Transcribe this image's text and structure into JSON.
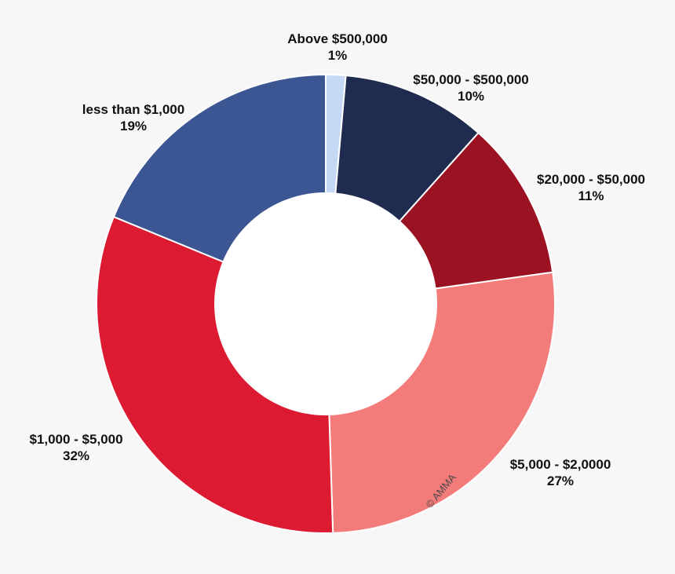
{
  "chart_data": {
    "type": "pie",
    "variant": "donut",
    "start_angle_deg": 0,
    "direction": "clockwise",
    "slices": [
      {
        "label": "Above $500,000",
        "pct": "1%",
        "value": 1.4,
        "color": "#c5d9f5",
        "label_color": "#111111"
      },
      {
        "label": "$50,000 - $500,000",
        "pct": "10%",
        "value": 10.2,
        "color": "#1f2b4f",
        "label_color": "#111111"
      },
      {
        "label": "$20,000 - $50,000",
        "pct": "11%",
        "value": 11.2,
        "color": "#9b1222",
        "label_color": "#111111"
      },
      {
        "label": "$5,000 - $2,0000",
        "pct": "27%",
        "value": 26.7,
        "color": "#f37c7a",
        "label_color": "#111111"
      },
      {
        "label": "$1,000 - $5,000",
        "pct": "32%",
        "value": 31.7,
        "color": "#dc1a32",
        "label_color": "#111111"
      },
      {
        "label": "less than $1,000",
        "pct": "19%",
        "value": 18.8,
        "color": "#3b5692",
        "label_color": "#111111"
      }
    ]
  },
  "watermark": "© AMMA"
}
